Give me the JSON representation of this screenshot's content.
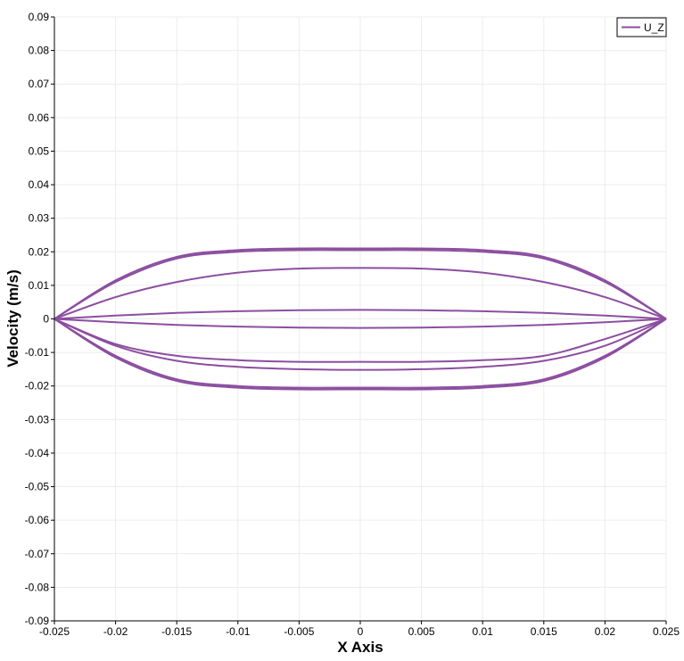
{
  "chart_data": {
    "type": "line",
    "xlabel": "X Axis",
    "ylabel": "Velocity (m/s)",
    "xlim": [
      -0.025,
      0.025
    ],
    "ylim": [
      -0.09,
      0.09
    ],
    "xticks": [
      -0.025,
      -0.02,
      -0.015,
      -0.01,
      -0.005,
      0,
      0.005,
      0.01,
      0.015,
      0.02,
      0.025
    ],
    "xtick_labels": [
      "-0.025",
      "-0.02",
      "-0.015",
      "-0.01",
      "-0.005",
      "0",
      "0.005",
      "0.01",
      "0.015",
      "0.02",
      "0.025"
    ],
    "yticks": [
      0.09,
      0.08,
      0.07,
      0.06,
      0.05,
      0.04,
      0.03,
      0.02,
      0.01,
      0,
      -0.01,
      -0.02,
      -0.03,
      -0.04,
      -0.05,
      -0.06,
      -0.07,
      -0.08,
      -0.09
    ],
    "ytick_labels": [
      "0.09",
      "0.08",
      "0.07",
      "0.06",
      "0.05",
      "0.04",
      "0.03",
      "0.02",
      "0.01",
      "0",
      "-0.01",
      "-0.02",
      "-0.03",
      "-0.04",
      "-0.05",
      "-0.06",
      "-0.07",
      "-0.08",
      "-0.09"
    ],
    "grid": true,
    "legend": {
      "position": "top-right",
      "entries": [
        "U_Z"
      ]
    },
    "color": "#8c4ea0",
    "x": [
      -0.025,
      -0.02,
      -0.015,
      -0.01,
      -0.005,
      0,
      0.005,
      0.01,
      0.015,
      0.02,
      0.025
    ],
    "series": [
      {
        "values": [
          0,
          0.0115,
          0.0185,
          0.0205,
          0.021,
          0.021,
          0.021,
          0.0205,
          0.0185,
          0.0115,
          0
        ]
      },
      {
        "values": [
          0,
          0.011,
          0.018,
          0.02,
          0.0205,
          0.0205,
          0.0205,
          0.02,
          0.018,
          0.011,
          0
        ]
      },
      {
        "values": [
          0,
          0.0065,
          0.011,
          0.0138,
          0.015,
          0.0152,
          0.015,
          0.0138,
          0.011,
          0.0065,
          0
        ]
      },
      {
        "values": [
          0,
          0.001,
          0.0018,
          0.0023,
          0.0026,
          0.0027,
          0.0026,
          0.0023,
          0.0018,
          0.001,
          0
        ]
      },
      {
        "values": [
          0,
          -0.001,
          -0.0018,
          -0.0023,
          -0.0026,
          -0.0027,
          -0.0026,
          -0.0023,
          -0.0018,
          -0.001,
          0
        ]
      },
      {
        "values": [
          0,
          -0.0075,
          -0.011,
          -0.0123,
          -0.0128,
          -0.0128,
          -0.0128,
          -0.0123,
          -0.011,
          -0.006,
          0
        ]
      },
      {
        "values": [
          0,
          -0.008,
          -0.0125,
          -0.0143,
          -0.015,
          -0.0152,
          -0.015,
          -0.0143,
          -0.0125,
          -0.008,
          0
        ]
      },
      {
        "values": [
          0,
          -0.011,
          -0.018,
          -0.02,
          -0.0205,
          -0.0205,
          -0.0205,
          -0.02,
          -0.018,
          -0.011,
          0
        ]
      },
      {
        "values": [
          0,
          -0.0115,
          -0.0185,
          -0.0205,
          -0.021,
          -0.021,
          -0.021,
          -0.0205,
          -0.0185,
          -0.0115,
          0
        ]
      }
    ]
  }
}
